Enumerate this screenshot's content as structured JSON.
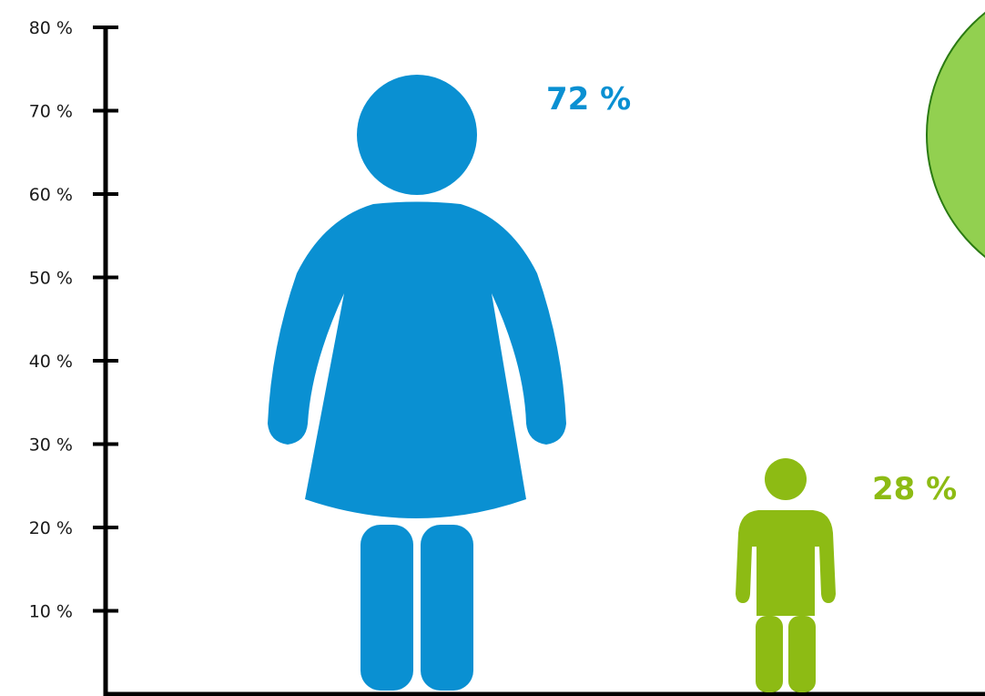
{
  "chart_data": {
    "type": "bar",
    "categories": [
      "",
      ""
    ],
    "values": [
      72,
      28
    ],
    "value_labels": [
      "72 %",
      "28 %"
    ],
    "y_ticks": [
      "10 %",
      "20 %",
      "30 %",
      "40 %",
      "50 %",
      "60 %",
      "70 %",
      "80 %"
    ],
    "ylim": [
      0,
      80
    ],
    "title": "",
    "xlabel": "",
    "ylabel": "",
    "grid": false,
    "mark_icons": [
      "woman-figure-icon",
      "child-figure-icon"
    ],
    "colors": {
      "series_1": "#0a90d2",
      "series_2": "#8dbb14",
      "badge_fill": "#92d050",
      "badge_stroke": "#2a7a12",
      "axis": "#000000"
    }
  }
}
